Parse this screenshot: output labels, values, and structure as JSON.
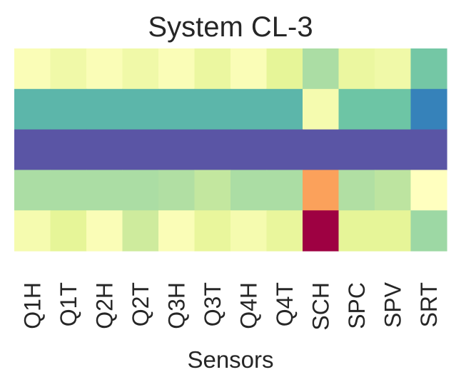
{
  "chart_data": {
    "type": "heatmap",
    "title": "System CL-3",
    "xlabel": "Sensors",
    "ylabel": "",
    "columns": [
      "Q1H",
      "Q1T",
      "Q2H",
      "Q2T",
      "Q3H",
      "Q3T",
      "Q4H",
      "Q4T",
      "SCH",
      "SPC",
      "SPV",
      "SRT"
    ],
    "rows": 5,
    "colormap": "Spectral",
    "colorbar": false,
    "values": [
      [
        0.52,
        0.56,
        0.52,
        0.56,
        0.52,
        0.58,
        0.52,
        0.6,
        0.7,
        0.58,
        0.56,
        0.78
      ],
      [
        0.82,
        0.82,
        0.82,
        0.82,
        0.82,
        0.82,
        0.82,
        0.82,
        0.54,
        0.79,
        0.79,
        0.91
      ],
      [
        0.99,
        0.99,
        0.99,
        0.99,
        0.99,
        0.99,
        0.99,
        0.99,
        0.99,
        0.99,
        0.99,
        0.99
      ],
      [
        0.7,
        0.7,
        0.7,
        0.7,
        0.69,
        0.66,
        0.7,
        0.7,
        0.28,
        0.69,
        0.67,
        0.5
      ],
      [
        0.54,
        0.6,
        0.52,
        0.64,
        0.52,
        0.59,
        0.54,
        0.59,
        0.0,
        0.6,
        0.6,
        0.72
      ]
    ]
  }
}
